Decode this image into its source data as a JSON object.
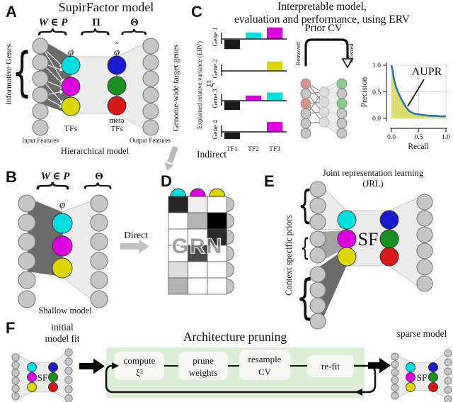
{
  "palette": {
    "cyan": "#00dfdf",
    "magenta": "#df00df",
    "yellow": "#ddd600",
    "blue": "#1a1ace",
    "green": "#18901c",
    "red": "#d81717",
    "gray_node": "#c6c6c6",
    "pink": "#d78f8f",
    "lightgreen": "#8cc98c",
    "band_dark": "#6b6b6b",
    "band_mid": "#a3a3a3",
    "band_light": "#ececec",
    "green_box": "#ddefd7",
    "aupr_fill": "#d9dc6e",
    "aupr_line": "#2d74ad"
  },
  "panelA": {
    "label": "A",
    "title": "SupirFactor model",
    "w_in_p": "W ∈ P",
    "pi": "Π",
    "theta": "Θ",
    "phi": "φ",
    "phi_hat": "φ",
    "hat": "ˆ",
    "tfs": "TFs",
    "meta": "meta",
    "meta_tfs": "TFs",
    "informative_genes": "Informative Genes",
    "genome_wide": "Genome-wide target genes",
    "input_features": "Input Features",
    "output_features": "Output Features",
    "caption": "Hierarchical model"
  },
  "panelB": {
    "label": "B",
    "w_in_p": "W ∈ P",
    "theta": "Θ",
    "phi": "φ",
    "caption": "Shallow model",
    "direct_label": "Direct"
  },
  "panelC": {
    "label": "C",
    "title_line1": "Interpretable model,",
    "title_line2": "evaluation and performance, using ERV",
    "erv": {
      "ylabel": "Explained relative variance (ERV)",
      "xi_label": "ξ²",
      "tf_labels": [
        "TF1",
        "TF2",
        "TF3"
      ],
      "charts": [
        {
          "gene": "Gene 1",
          "bars": [
            {
              "tf": 0,
              "v": -0.55,
              "color": "black"
            },
            {
              "tf": 1,
              "v": 0.38,
              "color": "cyan"
            },
            {
              "tf": 2,
              "v": 0.68,
              "color": "magenta"
            }
          ]
        },
        {
          "gene": "Gene 2",
          "bars": [
            {
              "tf": 2,
              "v": 0.55,
              "color": "yellow"
            }
          ]
        },
        {
          "gene": "Gene 3",
          "bars": [
            {
              "tf": 0,
              "v": -0.5,
              "color": "black"
            },
            {
              "tf": 1,
              "v": 0.3,
              "color": "magenta"
            },
            {
              "tf": 2,
              "v": 0.48,
              "color": "cyan"
            }
          ]
        },
        {
          "gene": "Gene 4",
          "bars": [
            {
              "tf": 0,
              "v": -0.38,
              "color": "black"
            },
            {
              "tf": 2,
              "v": 0.58,
              "color": "magenta"
            }
          ]
        }
      ]
    },
    "prior_cv": {
      "title": "Prior CV",
      "removed": "Removed",
      "inferred": "Inferred"
    },
    "aupr": {
      "label": "AUPR",
      "xlabel": "Recall",
      "ylabel": "Precision",
      "xticks": [
        "0.0",
        "0.5",
        "1.0"
      ],
      "yticks": [
        "0.0",
        "0.5",
        "1.0"
      ],
      "curve": [
        [
          0,
          1.0
        ],
        [
          0.02,
          0.92
        ],
        [
          0.04,
          0.78
        ],
        [
          0.06,
          0.68
        ],
        [
          0.09,
          0.58
        ],
        [
          0.12,
          0.5
        ],
        [
          0.15,
          0.43
        ],
        [
          0.18,
          0.37
        ],
        [
          0.21,
          0.31
        ],
        [
          0.24,
          0.26
        ],
        [
          0.27,
          0.21
        ],
        [
          0.3,
          0.17
        ],
        [
          0.34,
          0.13
        ],
        [
          0.38,
          0.11
        ],
        [
          0.42,
          0.09
        ],
        [
          0.48,
          0.08
        ],
        [
          0.55,
          0.07
        ],
        [
          0.62,
          0.06
        ],
        [
          0.7,
          0.05
        ],
        [
          0.8,
          0.05
        ],
        [
          0.9,
          0.04
        ],
        [
          1.0,
          0.04
        ]
      ]
    }
  },
  "panelD": {
    "label": "D",
    "indirect_label": "Indirect",
    "grn": "GRN",
    "grid": [
      [
        "#262626",
        "#ededed",
        "#ffffff"
      ],
      [
        "#ffffff",
        "#b5b5b5",
        "#000000"
      ],
      [
        "#ffffff",
        "#ffffff",
        "#2b2b2b"
      ],
      [
        "#ffffff",
        "#4b4b4b",
        "#ffffff"
      ],
      [
        "#dcdcdc",
        "#ffffff",
        "#ffffff"
      ],
      [
        "#b3b3b3",
        "#ffffff",
        "#ffffff"
      ]
    ]
  },
  "panelE": {
    "label": "E",
    "title_line1": "Joint representation learning",
    "title_line2": "(JRL)",
    "context_label": "Context specific priors",
    "sf": "SF"
  },
  "panelF": {
    "label": "F",
    "initial_line1": "initial",
    "initial_line2": "model fit",
    "pruning_title": "Architecture pruning",
    "steps": [
      [
        "compute",
        "ξ²"
      ],
      [
        "prune",
        "weights"
      ],
      [
        "resample",
        "CV"
      ],
      [
        "re-fit"
      ]
    ],
    "sf": "SF",
    "sparse_label": "sparse model"
  }
}
